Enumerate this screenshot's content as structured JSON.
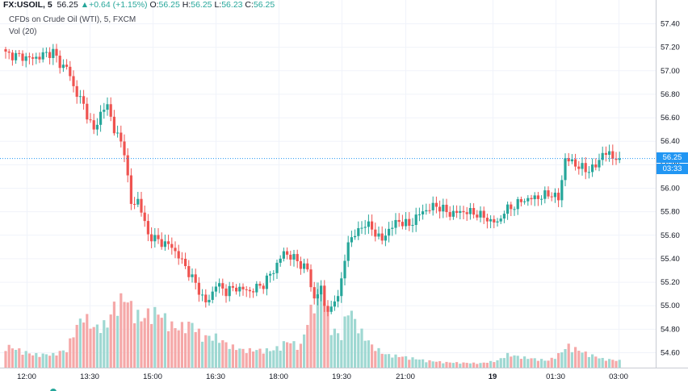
{
  "header": {
    "symbol": "FX:USOIL, 5",
    "price": "56.25",
    "arrow": "▲",
    "change": "+0.64 (+1.15%)",
    "o_label": "O:",
    "o_value": "56.25",
    "h_label": "H:",
    "h_value": "56.25",
    "l_label": "L:",
    "l_value": "56.23",
    "c_label": "C:",
    "c_value": "56.25",
    "title": "CFDs on Crude Oil (WTI), 5, FXCM",
    "volume_label": "Vol (20)"
  },
  "price_tag": {
    "value": "56.25",
    "countdown": "03:33"
  },
  "colors": {
    "up": "#26a69a",
    "down": "#ef5350",
    "up_vol": "#9fd8d2",
    "down_vol": "#f5a8a8",
    "price_line": "#2196f3"
  },
  "chart_data": {
    "type": "candlestick",
    "y_ticks": [
      "57.40",
      "57.20",
      "57.00",
      "56.80",
      "56.60",
      "56.40",
      "56.20",
      "56.00",
      "55.80",
      "55.60",
      "55.40",
      "55.20",
      "55.00",
      "54.80",
      "54.60"
    ],
    "ylim": [
      54.5,
      57.5
    ],
    "x_ticks": [
      "12:00",
      "13:30",
      "15:00",
      "16:30",
      "18:00",
      "19:30",
      "21:00",
      "19",
      "01:30",
      "03:00"
    ],
    "current_price": 56.25,
    "close_path": [
      [
        0,
        57.14
      ],
      [
        8,
        57.1
      ],
      [
        14,
        57.16
      ],
      [
        16,
        57.05
      ],
      [
        18,
        57.03
      ],
      [
        20,
        56.86
      ],
      [
        23,
        56.7
      ],
      [
        26,
        56.48
      ],
      [
        28,
        56.64
      ],
      [
        30,
        56.7
      ],
      [
        32,
        56.5
      ],
      [
        35,
        56.32
      ],
      [
        37,
        55.85
      ],
      [
        39,
        55.9
      ],
      [
        42,
        55.6
      ],
      [
        45,
        55.55
      ],
      [
        49,
        55.5
      ],
      [
        53,
        55.33
      ],
      [
        56,
        55.18
      ],
      [
        59,
        55.02
      ],
      [
        60,
        55.05
      ],
      [
        62,
        55.18
      ],
      [
        65,
        55.12
      ],
      [
        68,
        55.15
      ],
      [
        72,
        55.12
      ],
      [
        76,
        55.18
      ],
      [
        79,
        55.3
      ],
      [
        82,
        55.45
      ],
      [
        85,
        55.4
      ],
      [
        89,
        55.3
      ],
      [
        91,
        55.05
      ],
      [
        93,
        55.15
      ],
      [
        94,
        55.0
      ],
      [
        96,
        54.95
      ],
      [
        99,
        55.2
      ],
      [
        101,
        55.55
      ],
      [
        103,
        55.6
      ],
      [
        106,
        55.7
      ],
      [
        109,
        55.62
      ],
      [
        111,
        55.55
      ],
      [
        113,
        55.65
      ],
      [
        116,
        55.72
      ],
      [
        119,
        55.68
      ],
      [
        121,
        55.75
      ],
      [
        123,
        55.8
      ],
      [
        127,
        55.85
      ],
      [
        131,
        55.78
      ],
      [
        135,
        55.8
      ],
      [
        139,
        55.78
      ],
      [
        143,
        55.72
      ],
      [
        145,
        55.7
      ],
      [
        147,
        55.8
      ],
      [
        150,
        55.85
      ],
      [
        153,
        55.9
      ],
      [
        157,
        55.92
      ],
      [
        161,
        55.95
      ],
      [
        163,
        55.9
      ],
      [
        165,
        56.25
      ],
      [
        168,
        56.2
      ],
      [
        171,
        56.15
      ],
      [
        174,
        56.18
      ],
      [
        176,
        56.3
      ],
      [
        178,
        56.28
      ],
      [
        181,
        56.25
      ]
    ],
    "volume_path": [
      [
        0,
        0.25
      ],
      [
        8,
        0.15
      ],
      [
        14,
        0.15
      ],
      [
        16,
        0.18
      ],
      [
        18,
        0.2
      ],
      [
        20,
        0.4
      ],
      [
        23,
        0.6
      ],
      [
        26,
        0.45
      ],
      [
        30,
        0.5
      ],
      [
        32,
        0.7
      ],
      [
        35,
        0.8
      ],
      [
        37,
        0.7
      ],
      [
        40,
        0.55
      ],
      [
        43,
        0.65
      ],
      [
        46,
        0.6
      ],
      [
        50,
        0.45
      ],
      [
        55,
        0.5
      ],
      [
        58,
        0.35
      ],
      [
        62,
        0.35
      ],
      [
        66,
        0.25
      ],
      [
        70,
        0.2
      ],
      [
        75,
        0.2
      ],
      [
        79,
        0.2
      ],
      [
        83,
        0.3
      ],
      [
        87,
        0.25
      ],
      [
        90,
        0.65
      ],
      [
        92,
        0.9
      ],
      [
        94,
        0.8
      ],
      [
        96,
        0.45
      ],
      [
        99,
        0.35
      ],
      [
        101,
        0.7
      ],
      [
        104,
        0.45
      ],
      [
        108,
        0.25
      ],
      [
        112,
        0.15
      ],
      [
        118,
        0.12
      ],
      [
        124,
        0.08
      ],
      [
        130,
        0.06
      ],
      [
        140,
        0.05
      ],
      [
        145,
        0.08
      ],
      [
        148,
        0.15
      ],
      [
        152,
        0.12
      ],
      [
        160,
        0.08
      ],
      [
        163,
        0.15
      ],
      [
        166,
        0.25
      ],
      [
        170,
        0.18
      ],
      [
        176,
        0.1
      ],
      [
        181,
        0.08
      ]
    ]
  }
}
